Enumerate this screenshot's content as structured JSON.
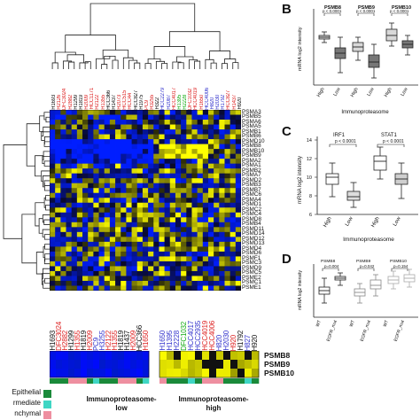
{
  "panels": {
    "b": "B",
    "c": "C",
    "d": "D"
  },
  "samples_top": [
    {
      "name": "H1693",
      "c": "#111"
    },
    {
      "name": "H2126",
      "c": "#d22"
    },
    {
      "name": "DFC3024",
      "c": "#d22"
    },
    {
      "name": "H2882",
      "c": "#d22"
    },
    {
      "name": "H1299",
      "c": "#111"
    },
    {
      "name": "H1819",
      "c": "#111"
    },
    {
      "name": "H2009",
      "c": "#d22"
    },
    {
      "name": "HCC1171",
      "c": "#d22"
    },
    {
      "name": "H2122",
      "c": "#d22"
    },
    {
      "name": "H1355",
      "c": "#d22"
    },
    {
      "name": "HCC366",
      "c": "#111"
    },
    {
      "name": "H1437",
      "c": "#111"
    },
    {
      "name": "H2073",
      "c": "#d22"
    },
    {
      "name": "HCC515",
      "c": "#d22"
    },
    {
      "name": "HCC44",
      "c": "#d22"
    },
    {
      "name": "HCC827",
      "c": "#111"
    },
    {
      "name": "H1975",
      "c": "#111"
    },
    {
      "name": "PC9",
      "c": "#d22"
    },
    {
      "name": "H3255",
      "c": "#d22"
    },
    {
      "name": "H322",
      "c": "#111"
    },
    {
      "name": "HCC2279",
      "c": "#33c"
    },
    {
      "name": "H2087",
      "c": "#33c"
    },
    {
      "name": "HCC4017",
      "c": "#d22"
    },
    {
      "name": "H1395",
      "c": "#1a1"
    },
    {
      "name": "H2228",
      "c": "#1a1"
    },
    {
      "name": "DFC1032",
      "c": "#d22"
    },
    {
      "name": "HCC4019",
      "c": "#d22"
    },
    {
      "name": "H1650",
      "c": "#d22"
    },
    {
      "name": "HCC4006",
      "c": "#33c"
    },
    {
      "name": "H820",
      "c": "#33c"
    },
    {
      "name": "H2030",
      "c": "#33c"
    },
    {
      "name": "H1792",
      "c": "#33c"
    },
    {
      "name": "HCC827",
      "c": "#d22"
    },
    {
      "name": "H1437",
      "c": "#d22"
    },
    {
      "name": "H920",
      "c": "#111"
    }
  ],
  "proteasome_labels": [
    "PSMA3",
    "PSMB5",
    "PSMA6",
    "PSMA5",
    "PSMB1",
    "PSMB6",
    "PSMD10",
    "PSMB8",
    "PSMB10",
    "PSMB9",
    "PSMA2",
    "PSMA1",
    "PSMB2",
    "PSMA7",
    "PSMD2",
    "PSMB3",
    "PSMB7",
    "PSMC6",
    "PSMA4",
    "PSMD1",
    "PSMC2",
    "PSMC4",
    "PSMD8",
    "PSMB4",
    "PSMD11",
    "PSMD14",
    "PSMD12",
    "PSMD13",
    "PSMD4",
    "PSMD6",
    "PSMF1",
    "PSMC3",
    "PSMD9",
    "PSMC5",
    "PSME2",
    "PSMC1",
    "PSME1"
  ],
  "sub_samples_low": [
    {
      "name": "H1693",
      "c": "#111"
    },
    {
      "name": "DFC3024",
      "c": "#d22"
    },
    {
      "name": "H2882",
      "c": "#d22"
    },
    {
      "name": "H1299",
      "c": "#111"
    },
    {
      "name": "H1355",
      "c": "#d22"
    },
    {
      "name": "H1819",
      "c": "#111"
    },
    {
      "name": "H2009",
      "c": "#d22"
    },
    {
      "name": "PC9",
      "c": "#33c"
    },
    {
      "name": "H3255",
      "c": "#33c"
    },
    {
      "name": "H2122",
      "c": "#d22"
    },
    {
      "name": "H1355",
      "c": "#d22"
    },
    {
      "name": "H1819",
      "c": "#111"
    },
    {
      "name": "H1437",
      "c": "#111"
    },
    {
      "name": "H2009",
      "c": "#d22"
    },
    {
      "name": "HCC366",
      "c": "#111"
    },
    {
      "name": "H1650",
      "c": "#d22"
    }
  ],
  "sub_samples_high": [
    {
      "name": "H1650",
      "c": "#33c"
    },
    {
      "name": "H1395",
      "c": "#33c"
    },
    {
      "name": "H2228",
      "c": "#33c"
    },
    {
      "name": "DFC1032",
      "c": "#1a1"
    },
    {
      "name": "HCC4017",
      "c": "#33c"
    },
    {
      "name": "HCC2935",
      "c": "#33c"
    },
    {
      "name": "HCC4019",
      "c": "#d22"
    },
    {
      "name": "HCC4006",
      "c": "#d22"
    },
    {
      "name": "H820",
      "c": "#33c"
    },
    {
      "name": "H2030",
      "c": "#33c"
    },
    {
      "name": "H920",
      "c": "#d22"
    },
    {
      "name": "H1792",
      "c": "#111"
    },
    {
      "name": "H827",
      "c": "#33c"
    },
    {
      "name": "H920",
      "c": "#111"
    }
  ],
  "sub_rows": [
    "PSMB8",
    "PSMB9",
    "PSMB10"
  ],
  "legend": [
    "Epithelial",
    "rmediate",
    "nchymal"
  ],
  "groups": {
    "low": "Immunoproteasome-\nlow",
    "high": "Immunoproteasome-\nhigh",
    "low_l1": "Immunoproteasome-",
    "low_l2": "low",
    "high_l1": "Immunoproteasome-",
    "high_l2": "high"
  },
  "panel_b": {
    "genes": [
      "PSMB8",
      "PSMB9",
      "PSMB10"
    ],
    "pvals": [
      "p < 0.0001",
      "p < 0.0001",
      "p < 0.0001"
    ],
    "ylabel": "mRNA log2 intensity",
    "xcats": [
      "High",
      "Low",
      "High",
      "Low",
      "High",
      "Low"
    ],
    "xlabel": "Immunoproteasome"
  },
  "panel_c": {
    "genes": [
      "IRF1",
      "STAT1"
    ],
    "pvals": [
      "p < 0.0001",
      "p < 0.0001"
    ],
    "ylabel": "mRNA log2 intensity",
    "yticks": [
      "6",
      "8",
      "10",
      "12",
      "14"
    ],
    "xcats": [
      "High",
      "Low",
      "High",
      "Low"
    ],
    "xlabel": "Immunoproteasome"
  },
  "panel_d": {
    "genes": [
      "PSMB8",
      "PSMB9",
      "PSMB10"
    ],
    "pvals": [
      "p=0.004",
      "p=0.042",
      "p=0.154"
    ],
    "ylabel": "mRNA log2 intensity",
    "xcats": [
      "WT",
      "EGFR_mut",
      "WT",
      "EGFR_mut",
      "WT",
      "EGFR_mut"
    ]
  }
}
